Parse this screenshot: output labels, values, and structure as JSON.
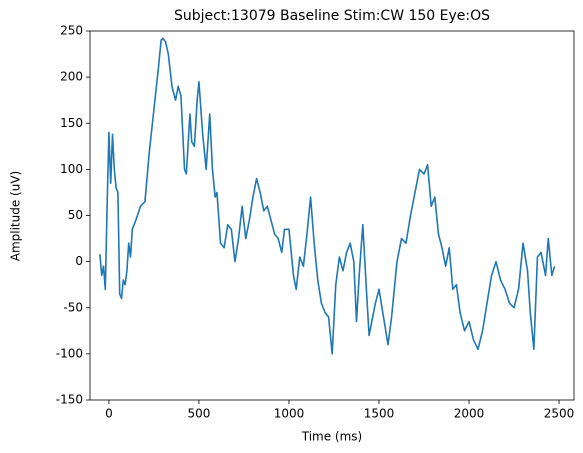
{
  "chart_data": {
    "type": "line",
    "title": "Subject:13079 Baseline Stim:CW 150 Eye:OS",
    "xlabel": "Time (ms)",
    "ylabel": "Amplitude (uV)",
    "x": [
      -50,
      -40,
      -30,
      -20,
      -10,
      0,
      10,
      20,
      30,
      40,
      50,
      60,
      70,
      80,
      90,
      100,
      110,
      120,
      130,
      150,
      175,
      200,
      225,
      250,
      275,
      290,
      300,
      315,
      330,
      350,
      370,
      385,
      400,
      420,
      430,
      450,
      460,
      475,
      490,
      500,
      520,
      540,
      560,
      575,
      590,
      600,
      620,
      640,
      660,
      680,
      700,
      720,
      740,
      760,
      780,
      800,
      820,
      840,
      860,
      880,
      900,
      920,
      940,
      960,
      975,
      1000,
      1025,
      1040,
      1060,
      1080,
      1100,
      1120,
      1140,
      1160,
      1180,
      1200,
      1220,
      1240,
      1260,
      1280,
      1300,
      1320,
      1340,
      1360,
      1375,
      1390,
      1410,
      1430,
      1445,
      1460,
      1480,
      1500,
      1525,
      1550,
      1570,
      1600,
      1625,
      1650,
      1675,
      1700,
      1725,
      1750,
      1770,
      1790,
      1810,
      1830,
      1850,
      1870,
      1890,
      1910,
      1930,
      1950,
      1975,
      2000,
      2025,
      2050,
      2075,
      2100,
      2125,
      2150,
      2175,
      2200,
      2225,
      2250,
      2275,
      2300,
      2325,
      2340,
      2360,
      2380,
      2400,
      2425,
      2440,
      2460,
      2475
    ],
    "series": [
      {
        "name": "Amplitude",
        "color": "#1f77b4",
        "values": [
          8,
          -15,
          -5,
          -30,
          60,
          140,
          85,
          138,
          100,
          80,
          75,
          -35,
          -40,
          -20,
          -25,
          -10,
          20,
          5,
          35,
          45,
          60,
          65,
          120,
          165,
          210,
          240,
          242,
          238,
          225,
          190,
          175,
          190,
          180,
          100,
          95,
          160,
          130,
          125,
          175,
          195,
          140,
          100,
          160,
          100,
          70,
          75,
          20,
          15,
          40,
          35,
          0,
          25,
          60,
          25,
          45,
          70,
          90,
          75,
          55,
          60,
          45,
          30,
          25,
          10,
          35,
          35,
          -15,
          -30,
          5,
          -5,
          30,
          70,
          20,
          -20,
          -45,
          -55,
          -60,
          -100,
          -25,
          5,
          -10,
          10,
          20,
          0,
          -65,
          -15,
          40,
          -30,
          -80,
          -65,
          -45,
          -30,
          -60,
          -90,
          -60,
          0,
          25,
          20,
          50,
          75,
          100,
          95,
          105,
          60,
          70,
          30,
          15,
          -5,
          15,
          -30,
          -25,
          -55,
          -75,
          -65,
          -85,
          -95,
          -75,
          -45,
          -15,
          0,
          -20,
          -30,
          -45,
          -50,
          -30,
          20,
          -10,
          -55,
          -95,
          5,
          10,
          -15,
          25,
          -15,
          -5
        ]
      }
    ],
    "xlim": [
      -105,
      2583
    ],
    "ylim": [
      -150,
      250
    ],
    "xticks": [
      0,
      500,
      1000,
      1500,
      2000,
      2500
    ],
    "yticks": [
      -150,
      -100,
      -50,
      0,
      50,
      100,
      150,
      200,
      250
    ]
  }
}
